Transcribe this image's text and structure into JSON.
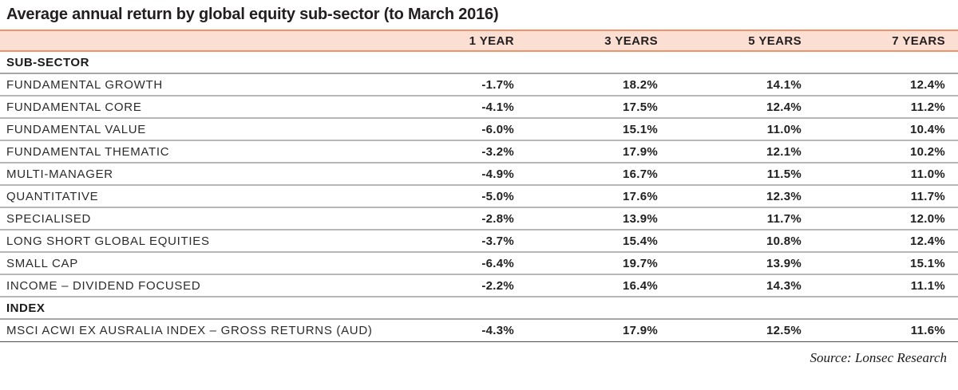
{
  "title": "Average annual return by global equity sub-sector (to March 2016)",
  "source": "Source: Lonsec Research",
  "colors": {
    "header_background": "#fbdfd2",
    "header_border": "#f0926b",
    "row_separator": "#b7b7b7",
    "bottom_rule": "#4d4d4d",
    "text": "#231f20"
  },
  "chart_data": {
    "type": "table",
    "title": "Average annual return by global equity sub-sector (to March 2016)",
    "columns": [
      "1 YEAR",
      "3 YEARS",
      "5 YEARS",
      "7 YEARS"
    ],
    "rows": [
      {
        "type": "section",
        "label": "SUB-SECTOR"
      },
      {
        "type": "data",
        "label": "FUNDAMENTAL GROWTH",
        "values": [
          "-1.7%",
          "18.2%",
          "14.1%",
          "12.4%"
        ]
      },
      {
        "type": "data",
        "label": "FUNDAMENTAL CORE",
        "values": [
          "-4.1%",
          "17.5%",
          "12.4%",
          "11.2%"
        ]
      },
      {
        "type": "data",
        "label": "FUNDAMENTAL VALUE",
        "values": [
          "-6.0%",
          "15.1%",
          "11.0%",
          "10.4%"
        ]
      },
      {
        "type": "data",
        "label": "FUNDAMENTAL THEMATIC",
        "values": [
          "-3.2%",
          "17.9%",
          "12.1%",
          "10.2%"
        ]
      },
      {
        "type": "data",
        "label": "MULTI-MANAGER",
        "values": [
          "-4.9%",
          "16.7%",
          "11.5%",
          "11.0%"
        ]
      },
      {
        "type": "data",
        "label": "QUANTITATIVE",
        "values": [
          "-5.0%",
          "17.6%",
          "12.3%",
          "11.7%"
        ]
      },
      {
        "type": "data",
        "label": "SPECIALISED",
        "values": [
          "-2.8%",
          "13.9%",
          "11.7%",
          "12.0%"
        ]
      },
      {
        "type": "data",
        "label": "LONG SHORT GLOBAL EQUITIES",
        "values": [
          "-3.7%",
          "15.4%",
          "10.8%",
          "12.4%"
        ]
      },
      {
        "type": "data",
        "label": "SMALL CAP",
        "values": [
          "-6.4%",
          "19.7%",
          "13.9%",
          "15.1%"
        ]
      },
      {
        "type": "data",
        "label": "INCOME – DIVIDEND FOCUSED",
        "values": [
          "-2.2%",
          "16.4%",
          "14.3%",
          "11.1%"
        ]
      },
      {
        "type": "section",
        "label": "INDEX"
      },
      {
        "type": "data",
        "label": "MSCI ACWI EX AUSRALIA INDEX – GROSS RETURNS (AUD)",
        "values": [
          "-4.3%",
          "17.9%",
          "12.5%",
          "11.6%"
        ]
      }
    ]
  }
}
